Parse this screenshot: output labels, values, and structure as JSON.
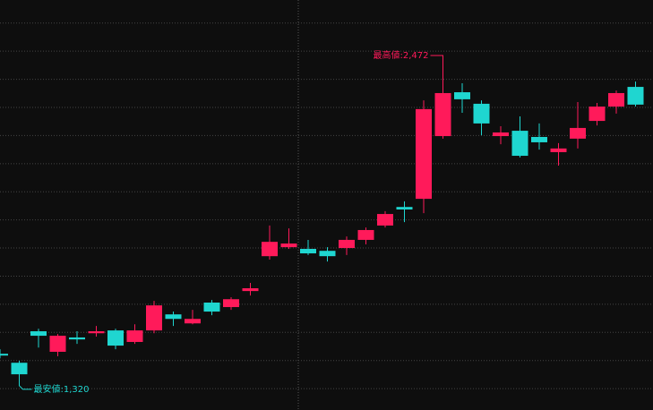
{
  "chart_data": {
    "type": "candlestick",
    "categories": [
      null,
      null,
      null,
      null,
      null,
      null,
      null,
      null,
      null,
      null,
      null,
      null,
      null,
      null,
      null,
      null,
      null,
      null,
      null,
      null,
      null,
      null,
      null,
      null,
      null,
      null,
      null,
      null,
      null,
      null,
      null,
      null,
      null,
      null
    ],
    "open": [
      1424,
      1392,
      1504,
      1431,
      1482,
      1497,
      1507,
      1466,
      1507,
      1564,
      1532,
      1606,
      1590,
      1647,
      1771,
      1803,
      1797,
      1790,
      1800,
      1829,
      1880,
      1946,
      1975,
      2198,
      2354,
      2313,
      2198,
      2217,
      2195,
      2141,
      2189,
      2252,
      2303,
      2373
    ],
    "high": [
      1440,
      1399,
      1513,
      1494,
      1504,
      1523,
      1513,
      1529,
      1612,
      1574,
      1580,
      1615,
      1625,
      1676,
      1880,
      1870,
      1829,
      1803,
      1841,
      1873,
      1931,
      1966,
      2325,
      2472,
      2386,
      2325,
      2233,
      2268,
      2243,
      2173,
      2319,
      2316,
      2360,
      2392
    ],
    "low": [
      1408,
      1320,
      1446,
      1415,
      1459,
      1485,
      1440,
      1459,
      1497,
      1523,
      1529,
      1561,
      1580,
      1631,
      1759,
      1797,
      1775,
      1752,
      1775,
      1813,
      1873,
      1892,
      1924,
      2189,
      2281,
      2201,
      2169,
      2122,
      2150,
      2093,
      2154,
      2236,
      2278,
      2303
    ],
    "close": [
      1421,
      1351,
      1488,
      1488,
      1475,
      1504,
      1453,
      1507,
      1596,
      1548,
      1548,
      1574,
      1618,
      1657,
      1822,
      1816,
      1781,
      1771,
      1829,
      1864,
      1921,
      1937,
      2294,
      2351,
      2329,
      2243,
      2211,
      2128,
      2176,
      2154,
      2227,
      2303,
      2351,
      2310
    ],
    "up_color": "#ff1a5a",
    "down_color": "#1fd6d0",
    "ylim": [
      1224,
      2682
    ],
    "yticks": [
      1300,
      1400,
      1500,
      1600,
      1700,
      1800,
      1900,
      2000,
      2100,
      2200,
      2300,
      2400,
      2500,
      2600
    ],
    "grid": true,
    "annotations": {
      "high": "最高値:2,472",
      "low": "最安値:1,320"
    }
  }
}
